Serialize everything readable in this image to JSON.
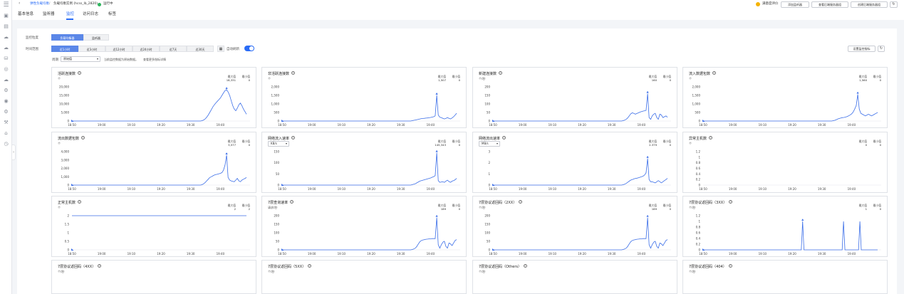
{
  "header": {
    "breadcrumb": {
      "l1": "弹性负载均衡",
      "sep1": "/",
      "l2": "负载均衡实例 (hcss_lb_2820)",
      "status": "运行中"
    },
    "tabs": [
      "基本信息",
      "监听器",
      "监控",
      "访问日志",
      "标签"
    ],
    "active_tab": "监控",
    "satisfaction": "满意度评价",
    "buttons": [
      "添加监听器",
      "查看后端服务器组",
      "创建后端服务器组"
    ]
  },
  "filters": {
    "object_label": "监控粒度",
    "objects": [
      "负载均衡器",
      "监听器"
    ],
    "time_label": "时间范围",
    "ranges": [
      "近1小时",
      "近3小时",
      "近12小时",
      "近24小时",
      "近7天",
      "近30天"
    ],
    "auto_refresh": "自动刷新",
    "period_label": "周期",
    "period_value": "原始值",
    "hint": "当前监控数据为原始数据。",
    "hint_link": "查看更多指标详情",
    "set_alarm": "设置监控指标",
    "max_label": "最大值",
    "min_label": "最小值"
  },
  "colors": {
    "accent": "#2a6cf6",
    "line": "#3b6ee8"
  },
  "x_ticks": [
    "18:50",
    "19:00",
    "19:10",
    "19:20",
    "19:30",
    "19:40"
  ],
  "cards": [
    {
      "title": "活跃连接数",
      "unit": "个",
      "max": "18,331",
      "min": "0",
      "yticks": [
        "20,000",
        "15,000",
        "10,000",
        "5,000",
        "0"
      ],
      "ymax": 20000,
      "values": [
        0,
        0,
        0,
        0,
        0,
        0,
        0,
        0,
        0,
        0,
        0,
        0,
        0,
        0,
        0,
        0,
        0,
        0,
        0,
        0,
        0,
        0,
        0,
        0,
        0,
        0,
        0,
        0,
        0,
        0,
        0,
        0,
        0,
        0,
        0,
        0,
        0,
        0,
        0,
        0,
        0,
        0,
        0,
        0,
        0,
        0,
        0,
        0,
        0,
        0,
        0,
        0,
        0,
        0,
        0,
        0,
        0,
        0,
        0,
        0,
        0,
        0,
        0,
        0,
        0,
        0,
        0,
        0,
        0,
        0,
        0,
        0,
        0,
        0,
        0,
        0,
        0,
        0,
        0,
        0,
        0,
        0,
        0,
        0,
        0,
        200,
        600,
        1200,
        2200,
        3500,
        5000,
        6600,
        8200,
        9500,
        10600,
        11600,
        12500,
        13600,
        15000,
        16500,
        17800,
        18331,
        17000,
        15000,
        12000,
        9000,
        7000,
        6000,
        7500,
        9500,
        10500,
        9000,
        7000,
        5500,
        4000
      ]
    },
    {
      "title": "非活跃连接数",
      "unit": "个",
      "max": "1,507",
      "min": "0",
      "yticks": [
        "2,000",
        "1,500",
        "1,000",
        "500",
        "0"
      ],
      "ymax": 2000,
      "values": [
        0,
        0,
        0,
        0,
        0,
        0,
        0,
        0,
        0,
        0,
        0,
        0,
        0,
        0,
        0,
        0,
        0,
        0,
        0,
        0,
        0,
        0,
        0,
        0,
        0,
        0,
        0,
        0,
        0,
        0,
        0,
        0,
        0,
        0,
        0,
        0,
        0,
        0,
        0,
        0,
        0,
        0,
        0,
        0,
        0,
        0,
        0,
        0,
        0,
        0,
        0,
        0,
        0,
        0,
        0,
        0,
        0,
        0,
        0,
        0,
        0,
        0,
        0,
        0,
        0,
        0,
        0,
        0,
        0,
        0,
        0,
        0,
        0,
        0,
        0,
        0,
        0,
        0,
        0,
        0,
        0,
        0,
        0,
        0,
        0,
        20,
        40,
        60,
        80,
        100,
        120,
        140,
        150,
        160,
        170,
        180,
        190,
        210,
        230,
        250,
        300,
        1507,
        350,
        220,
        200,
        160,
        120,
        160,
        200,
        160,
        120,
        180,
        250,
        350,
        450
      ]
    },
    {
      "title": "新建连接数",
      "unit": "个/秒",
      "max": "160",
      "min": "0",
      "yticks": [
        "200",
        "150",
        "100",
        "50",
        "0"
      ],
      "ymax": 200,
      "values": [
        0,
        0,
        0,
        0,
        0,
        0,
        0,
        0,
        0,
        0,
        0,
        0,
        0,
        0,
        0,
        0,
        0,
        0,
        0,
        0,
        0,
        0,
        0,
        0,
        0,
        0,
        0,
        0,
        0,
        0,
        0,
        0,
        0,
        0,
        0,
        0,
        0,
        0,
        0,
        0,
        0,
        0,
        0,
        0,
        0,
        0,
        0,
        0,
        0,
        0,
        0,
        0,
        0,
        0,
        0,
        0,
        0,
        0,
        0,
        0,
        0,
        0,
        0,
        0,
        0,
        0,
        0,
        0,
        0,
        0,
        0,
        0,
        0,
        0,
        0,
        0,
        0,
        0,
        0,
        0,
        0,
        0,
        0,
        0,
        0,
        2,
        5,
        10,
        18,
        30,
        42,
        48,
        45,
        40,
        44,
        48,
        52,
        55,
        58,
        60,
        62,
        160,
        20,
        10,
        30,
        40,
        45,
        20,
        10,
        40,
        35,
        20,
        25,
        30,
        22
      ]
    },
    {
      "title": "流入数据包数",
      "unit": "个",
      "max": "1,560",
      "min": "0",
      "yticks": [
        "2,000",
        "1,500",
        "1,000",
        "500",
        "0"
      ],
      "ymax": 2000,
      "values": [
        0,
        0,
        0,
        0,
        0,
        0,
        0,
        0,
        0,
        0,
        0,
        0,
        0,
        0,
        0,
        0,
        0,
        0,
        0,
        0,
        0,
        0,
        0,
        0,
        0,
        0,
        0,
        0,
        0,
        0,
        0,
        0,
        0,
        0,
        0,
        0,
        0,
        0,
        0,
        0,
        0,
        0,
        0,
        0,
        0,
        0,
        0,
        0,
        0,
        0,
        0,
        0,
        0,
        0,
        0,
        0,
        0,
        0,
        0,
        0,
        0,
        0,
        0,
        0,
        0,
        0,
        0,
        0,
        0,
        0,
        0,
        0,
        0,
        0,
        0,
        0,
        0,
        0,
        0,
        0,
        0,
        0,
        0,
        0,
        0,
        20,
        40,
        80,
        120,
        150,
        180,
        200,
        210,
        230,
        260,
        300,
        350,
        420,
        520,
        700,
        900,
        1560,
        700,
        450,
        400,
        350,
        300,
        350,
        400,
        350,
        300,
        350,
        400,
        450,
        500
      ]
    },
    {
      "title": "流出数据包数",
      "unit": "个",
      "max": "3,577",
      "min": "0",
      "yticks": [
        "4,000",
        "3,000",
        "2,000",
        "1,000",
        "0"
      ],
      "ymax": 4000,
      "values": [
        0,
        0,
        0,
        0,
        0,
        0,
        0,
        0,
        0,
        0,
        0,
        0,
        0,
        0,
        0,
        0,
        0,
        0,
        0,
        0,
        0,
        0,
        0,
        0,
        0,
        0,
        0,
        0,
        0,
        0,
        0,
        0,
        0,
        0,
        0,
        0,
        0,
        0,
        0,
        0,
        0,
        0,
        0,
        0,
        0,
        0,
        0,
        0,
        0,
        0,
        0,
        0,
        0,
        0,
        0,
        0,
        0,
        0,
        0,
        0,
        0,
        0,
        0,
        0,
        0,
        0,
        0,
        0,
        0,
        0,
        0,
        0,
        0,
        0,
        0,
        0,
        0,
        0,
        0,
        0,
        0,
        0,
        0,
        0,
        0,
        50,
        150,
        300,
        500,
        700,
        900,
        1000,
        1100,
        1200,
        1250,
        1300,
        1350,
        1400,
        1500,
        1800,
        2400,
        3577,
        900,
        600,
        500,
        450,
        400,
        600,
        800,
        500,
        400,
        600,
        700,
        800,
        900
      ]
    },
    {
      "title": "网络流入速率",
      "unit": "KB/s",
      "max": "145,343",
      "min": "0",
      "yticks": [
        "150",
        "100",
        "50",
        "0"
      ],
      "ymax": 150,
      "values": [
        0,
        0,
        0,
        0,
        0,
        0,
        0,
        0,
        0,
        0,
        0,
        0,
        0,
        0,
        0,
        0,
        0,
        0,
        0,
        0,
        0,
        0,
        0,
        0,
        0,
        0,
        0,
        0,
        0,
        0,
        0,
        0,
        0,
        0,
        0,
        0,
        0,
        0,
        0,
        0,
        0,
        0,
        0,
        0,
        0,
        0,
        0,
        0,
        0,
        0,
        0,
        0,
        0,
        0,
        0,
        0,
        0,
        0,
        0,
        0,
        0,
        0,
        0,
        0,
        0,
        0,
        0,
        0,
        0,
        0,
        0,
        0,
        0,
        0,
        0,
        0,
        0,
        0,
        0,
        0,
        0,
        0,
        0,
        0,
        0,
        2,
        4,
        6,
        10,
        14,
        18,
        20,
        22,
        24,
        26,
        28,
        30,
        32,
        35,
        38,
        42,
        145,
        20,
        12,
        14,
        15,
        12,
        18,
        22,
        16,
        12,
        18,
        20,
        24,
        30
      ]
    },
    {
      "title": "网络流出速率",
      "unit": "MB/s",
      "max": "2.379",
      "min": "0",
      "yticks": [
        "3",
        "2",
        "1",
        "0"
      ],
      "ymax": 3,
      "values": [
        0,
        0,
        0,
        0,
        0,
        0,
        0,
        0,
        0,
        0,
        0,
        0,
        0,
        0,
        0,
        0,
        0,
        0,
        0,
        0,
        0,
        0,
        0,
        0,
        0,
        0,
        0,
        0,
        0,
        0,
        0,
        0,
        0,
        0,
        0,
        0,
        0,
        0,
        0,
        0,
        0,
        0,
        0,
        0,
        0,
        0,
        0,
        0,
        0,
        0,
        0,
        0,
        0,
        0,
        0,
        0,
        0,
        0,
        0,
        0,
        0,
        0,
        0,
        0,
        0,
        0,
        0,
        0,
        0,
        0,
        0,
        0,
        0,
        0,
        0,
        0,
        0,
        0,
        0,
        0,
        0,
        0,
        0,
        0,
        0,
        0.03,
        0.08,
        0.15,
        0.25,
        0.35,
        0.45,
        0.5,
        0.55,
        0.6,
        0.62,
        0.65,
        0.7,
        0.75,
        0.8,
        0.9,
        1.1,
        2.379,
        0.5,
        0.3,
        0.3,
        0.25,
        0.2,
        0.3,
        0.4,
        0.3,
        0.2,
        0.3,
        0.4,
        0.5,
        0.6
      ]
    },
    {
      "title": "异常主机数",
      "unit": "个",
      "max": "0",
      "min": "0",
      "yticks": [
        "1.2",
        "1",
        "0.8",
        "0.6",
        "0.4",
        "0.2",
        "0"
      ],
      "ymax": 1.2,
      "values": [
        0
      ]
    },
    {
      "title": "正常主机数",
      "unit": "个",
      "max": "2",
      "min": "2",
      "yticks": [
        "2",
        "1.5",
        "1",
        "0.5",
        "0"
      ],
      "ymax": 2,
      "values": [
        2,
        2
      ]
    },
    {
      "title": "7层查询速率",
      "unit": "请求/秒",
      "max": "189",
      "min": "0",
      "yticks": [
        "200",
        "150",
        "100",
        "50",
        "0"
      ],
      "ymax": 200,
      "values": [
        0,
        0,
        0,
        0,
        0,
        0,
        0,
        0,
        0,
        0,
        0,
        0,
        0,
        0,
        0,
        0,
        0,
        0,
        0,
        0,
        0,
        0,
        0,
        0,
        0,
        0,
        0,
        0,
        0,
        0,
        0,
        0,
        0,
        0,
        0,
        0,
        0,
        0,
        0,
        0,
        0,
        0,
        0,
        0,
        0,
        0,
        0,
        0,
        0,
        0,
        0,
        0,
        0,
        0,
        0,
        0,
        0,
        0,
        0,
        0,
        0,
        0,
        0,
        0,
        0,
        0,
        0,
        0,
        0,
        0,
        0,
        0,
        0,
        0,
        0,
        0,
        0,
        0,
        0,
        0,
        0,
        0,
        0,
        0,
        0,
        2,
        5,
        10,
        20,
        35,
        48,
        55,
        58,
        60,
        62,
        63,
        64,
        65,
        66,
        66,
        66,
        189,
        30,
        10,
        30,
        45,
        50,
        20,
        10,
        40,
        35,
        25,
        40,
        55,
        60
      ]
    },
    {
      "title": "7层协议返回码（2XX）",
      "unit": "个/秒",
      "max": "189",
      "min": "0",
      "yticks": [
        "200",
        "150",
        "100",
        "50",
        "0"
      ],
      "ymax": 200,
      "values": [
        0,
        0,
        0,
        0,
        0,
        0,
        0,
        0,
        0,
        0,
        0,
        0,
        0,
        0,
        0,
        0,
        0,
        0,
        0,
        0,
        0,
        0,
        0,
        0,
        0,
        0,
        0,
        0,
        0,
        0,
        0,
        0,
        0,
        0,
        0,
        0,
        0,
        0,
        0,
        0,
        0,
        0,
        0,
        0,
        0,
        0,
        0,
        0,
        0,
        0,
        0,
        0,
        0,
        0,
        0,
        0,
        0,
        0,
        0,
        0,
        0,
        0,
        0,
        0,
        0,
        0,
        0,
        0,
        0,
        0,
        0,
        0,
        0,
        0,
        0,
        0,
        0,
        0,
        0,
        0,
        0,
        0,
        0,
        0,
        0,
        2,
        5,
        10,
        20,
        35,
        48,
        55,
        58,
        60,
        62,
        63,
        64,
        65,
        66,
        66,
        66,
        189,
        30,
        10,
        30,
        45,
        50,
        20,
        10,
        40,
        35,
        25,
        40,
        55,
        60
      ]
    },
    {
      "title": "7层协议返回码（3XX）",
      "unit": "个/秒",
      "max": "1",
      "min": "0",
      "yticks": [
        "1.2",
        "1",
        "0.8",
        "0.6",
        "0.4",
        "0.2",
        "0"
      ],
      "ymax": 1.2,
      "values": [
        0,
        0,
        0,
        0,
        0,
        0,
        0,
        0,
        0,
        0,
        0,
        0,
        0,
        0,
        0,
        0,
        0,
        0,
        0,
        0,
        0,
        0,
        0,
        0,
        0,
        0,
        0,
        0,
        0,
        0,
        0,
        0,
        0,
        0,
        0,
        0,
        0,
        0,
        0,
        0,
        0,
        0,
        0,
        0,
        0,
        0,
        0,
        0,
        0,
        0,
        0,
        0,
        0,
        0,
        0,
        0,
        0,
        0,
        0,
        0,
        0,
        0,
        0,
        0,
        0,
        0,
        0,
        0,
        0,
        0,
        0,
        0,
        0,
        1,
        0,
        0,
        0,
        0,
        0,
        0,
        0,
        0,
        0,
        0,
        0,
        0,
        0,
        0,
        0,
        0,
        0,
        0,
        0,
        0,
        0,
        0,
        0,
        0,
        0,
        0,
        0,
        0,
        0,
        1,
        0,
        0,
        0,
        0,
        0,
        0,
        0,
        0,
        0,
        0,
        0,
        1,
        0,
        0,
        0,
        0,
        0,
        0,
        0,
        0,
        0,
        0,
        0,
        0,
        0
      ]
    },
    {
      "title": "7层协议返回码（4XX）",
      "unit": "个/秒"
    },
    {
      "title": "7层协议返回码（5XX）",
      "unit": "个/秒"
    },
    {
      "title": "7层协议返回码（Others）",
      "unit": "个/秒"
    },
    {
      "title": "7层协议返回码（404）",
      "unit": "个/秒"
    }
  ]
}
